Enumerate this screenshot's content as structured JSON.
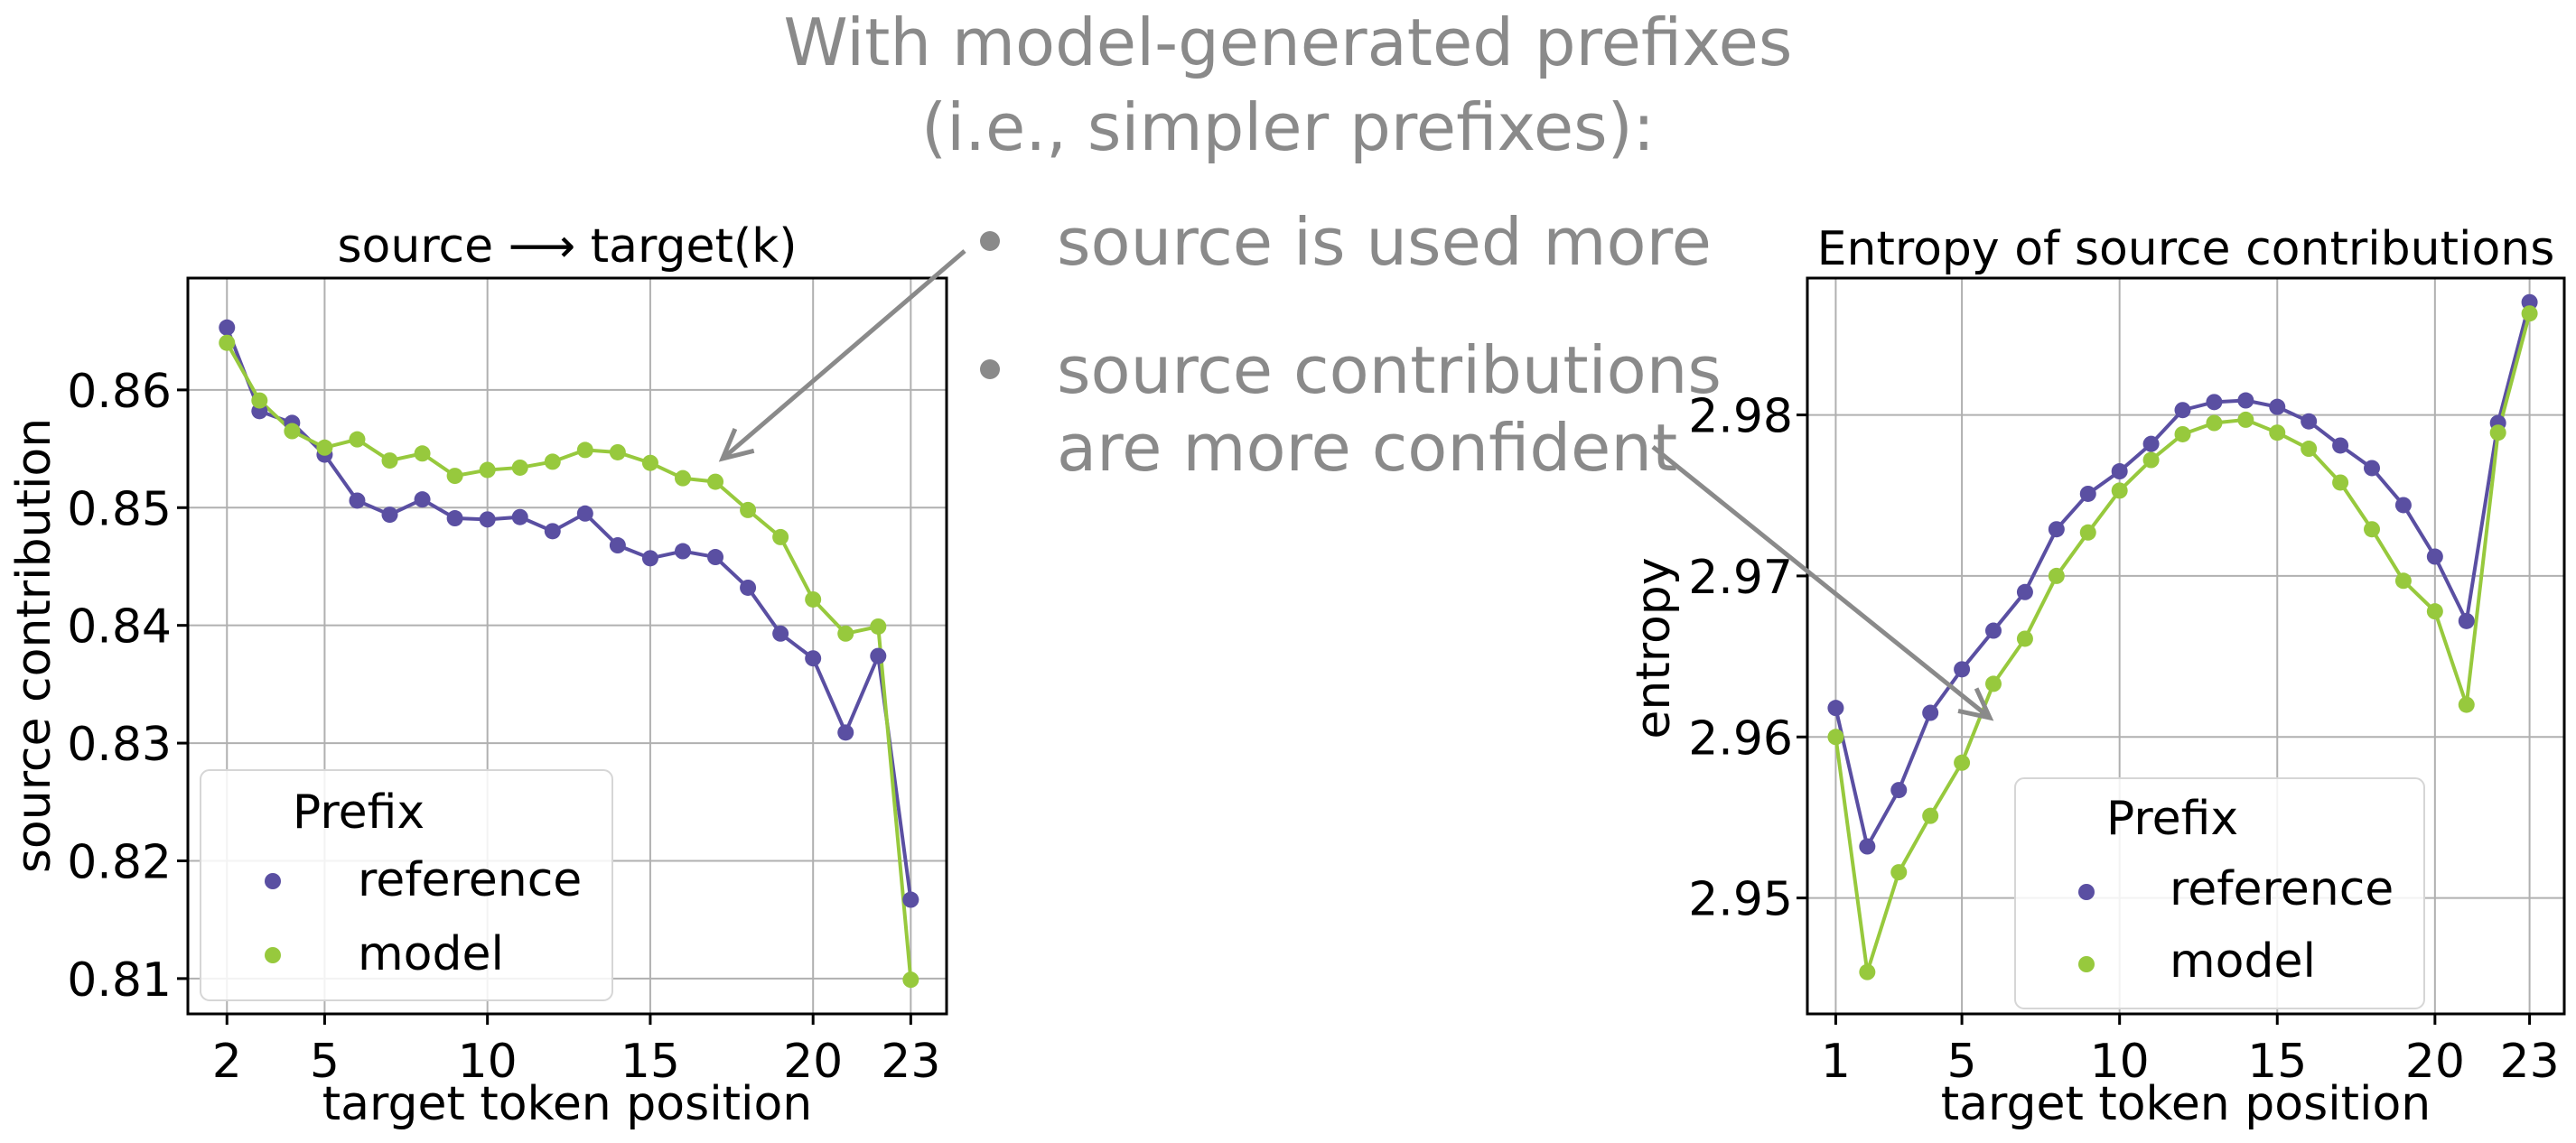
{
  "heading": {
    "line1": "With model-generated prefixes",
    "line2": "(i.e., simpler prefixes):"
  },
  "bullets": [
    {
      "text": "source is used more"
    },
    {
      "lines": [
        "source contributions",
        "are more confident"
      ]
    }
  ],
  "colors": {
    "reference": "#5a4fa2",
    "model": "#97c93d",
    "annotation": "#8a8a8a",
    "grid": "#b0b0b0"
  },
  "chart_data": [
    {
      "type": "line",
      "title": "source ⟶ target(k)",
      "xlabel": "target token position",
      "ylabel": "source contribution",
      "xlim": [
        0.8,
        24.1
      ],
      "ylim": [
        0.807,
        0.8695
      ],
      "xticks": [
        2,
        5,
        10,
        15,
        20,
        23
      ],
      "yticks": [
        0.81,
        0.82,
        0.83,
        0.84,
        0.85,
        0.86
      ],
      "yticklabels": [
        "0.81",
        "0.82",
        "0.83",
        "0.84",
        "0.85",
        "0.86"
      ],
      "grid": true,
      "legend": {
        "title": "Prefix",
        "position": "lower-left"
      },
      "x": [
        2,
        3,
        4,
        5,
        6,
        7,
        8,
        9,
        10,
        11,
        12,
        13,
        14,
        15,
        16,
        17,
        18,
        19,
        20,
        21,
        22,
        23
      ],
      "series": [
        {
          "name": "reference",
          "values": [
            0.8653,
            0.8582,
            0.8572,
            0.8545,
            0.8506,
            0.8494,
            0.8507,
            0.8491,
            0.849,
            0.8492,
            0.848,
            0.8495,
            0.8468,
            0.8457,
            0.8463,
            0.8458,
            0.8432,
            0.8393,
            0.8372,
            0.8309,
            0.8374,
            0.8167
          ]
        },
        {
          "name": "model",
          "values": [
            0.864,
            0.8591,
            0.8565,
            0.8551,
            0.8558,
            0.854,
            0.8546,
            0.8527,
            0.8532,
            0.8534,
            0.8539,
            0.8549,
            0.8547,
            0.8538,
            0.8525,
            0.8522,
            0.8498,
            0.8475,
            0.8422,
            0.8393,
            0.8399,
            0.8099
          ]
        }
      ]
    },
    {
      "type": "line",
      "title": "Entropy of source contributions",
      "xlabel": "target token position",
      "ylabel": "entropy",
      "xlim": [
        0.1,
        24.1
      ],
      "ylim": [
        2.9428,
        2.9885
      ],
      "xticks": [
        1,
        5,
        10,
        15,
        20,
        23
      ],
      "yticks": [
        2.95,
        2.96,
        2.97,
        2.98
      ],
      "yticklabels": [
        "2.95",
        "2.96",
        "2.97",
        "2.98"
      ],
      "grid": true,
      "legend": {
        "title": "Prefix",
        "position": "lower-right"
      },
      "x": [
        1,
        2,
        3,
        4,
        5,
        6,
        7,
        8,
        9,
        10,
        11,
        12,
        13,
        14,
        15,
        16,
        17,
        18,
        19,
        20,
        21,
        22,
        23
      ],
      "series": [
        {
          "name": "reference",
          "values": [
            2.9618,
            2.9532,
            2.9567,
            2.9615,
            2.9642,
            2.9666,
            2.969,
            2.9729,
            2.9751,
            2.9765,
            2.9782,
            2.9803,
            2.9808,
            2.9809,
            2.9805,
            2.9796,
            2.9781,
            2.9767,
            2.9744,
            2.9712,
            2.9672,
            2.9795,
            2.987
          ]
        },
        {
          "name": "model",
          "values": [
            2.96,
            2.9454,
            2.9516,
            2.9551,
            2.9584,
            2.9633,
            2.9661,
            2.97,
            2.9727,
            2.9753,
            2.9772,
            2.9788,
            2.9795,
            2.9797,
            2.9789,
            2.9779,
            2.9758,
            2.9729,
            2.9697,
            2.9678,
            2.962,
            2.9789,
            2.9863
          ]
        }
      ]
    }
  ]
}
